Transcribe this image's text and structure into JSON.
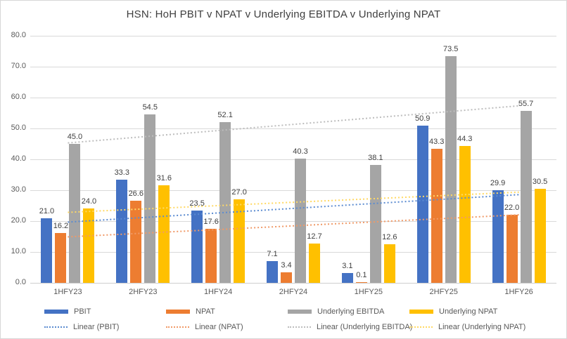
{
  "chart_data": {
    "type": "bar",
    "title": "HSN: HoH PBIT v NPAT v Underlying EBITDA v Underlying NPAT",
    "categories": [
      "1HFY23",
      "2HFY23",
      "1HFY24",
      "2HFY24",
      "1HFY25",
      "2HFY25",
      "1HFY26"
    ],
    "series": [
      {
        "name": "PBIT",
        "color": "#4472C4",
        "values": [
          21.0,
          33.3,
          23.5,
          7.1,
          3.1,
          50.9,
          29.9
        ]
      },
      {
        "name": "NPAT",
        "color": "#ED7D31",
        "values": [
          16.2,
          26.6,
          17.6,
          3.4,
          0.1,
          43.3,
          22.0
        ]
      },
      {
        "name": "Underlying EBITDA",
        "color": "#A5A5A5",
        "values": [
          45.0,
          54.5,
          52.1,
          40.3,
          38.1,
          73.5,
          55.7
        ]
      },
      {
        "name": "Underlying NPAT",
        "color": "#FFC000",
        "values": [
          24.0,
          31.6,
          27.0,
          12.7,
          12.6,
          44.3,
          30.5
        ]
      }
    ],
    "trendlines": [
      {
        "name": "Linear (PBIT)",
        "series": "PBIT",
        "color": "#5B8BD0"
      },
      {
        "name": "Linear (NPAT)",
        "series": "NPAT",
        "color": "#F09A68"
      },
      {
        "name": "Linear (Underlying EBITDA)",
        "series": "Underlying EBITDA",
        "color": "#BDBDBD"
      },
      {
        "name": "Linear (Underlying NPAT)",
        "series": "Underlying NPAT",
        "color": "#FFD965"
      }
    ],
    "ylim": [
      0,
      80
    ],
    "ytick_step": 10,
    "ytick_labels": [
      "0.0",
      "10.0",
      "20.0",
      "30.0",
      "40.0",
      "50.0",
      "60.0",
      "70.0",
      "80.0"
    ],
    "value_format_decimals": 1,
    "grid": true,
    "legend_position": "bottom",
    "colors": {
      "grid": "#d9d9d9",
      "axis_text": "#595959",
      "title_text": "#3f3f3f",
      "data_label_text": "#404040"
    }
  }
}
